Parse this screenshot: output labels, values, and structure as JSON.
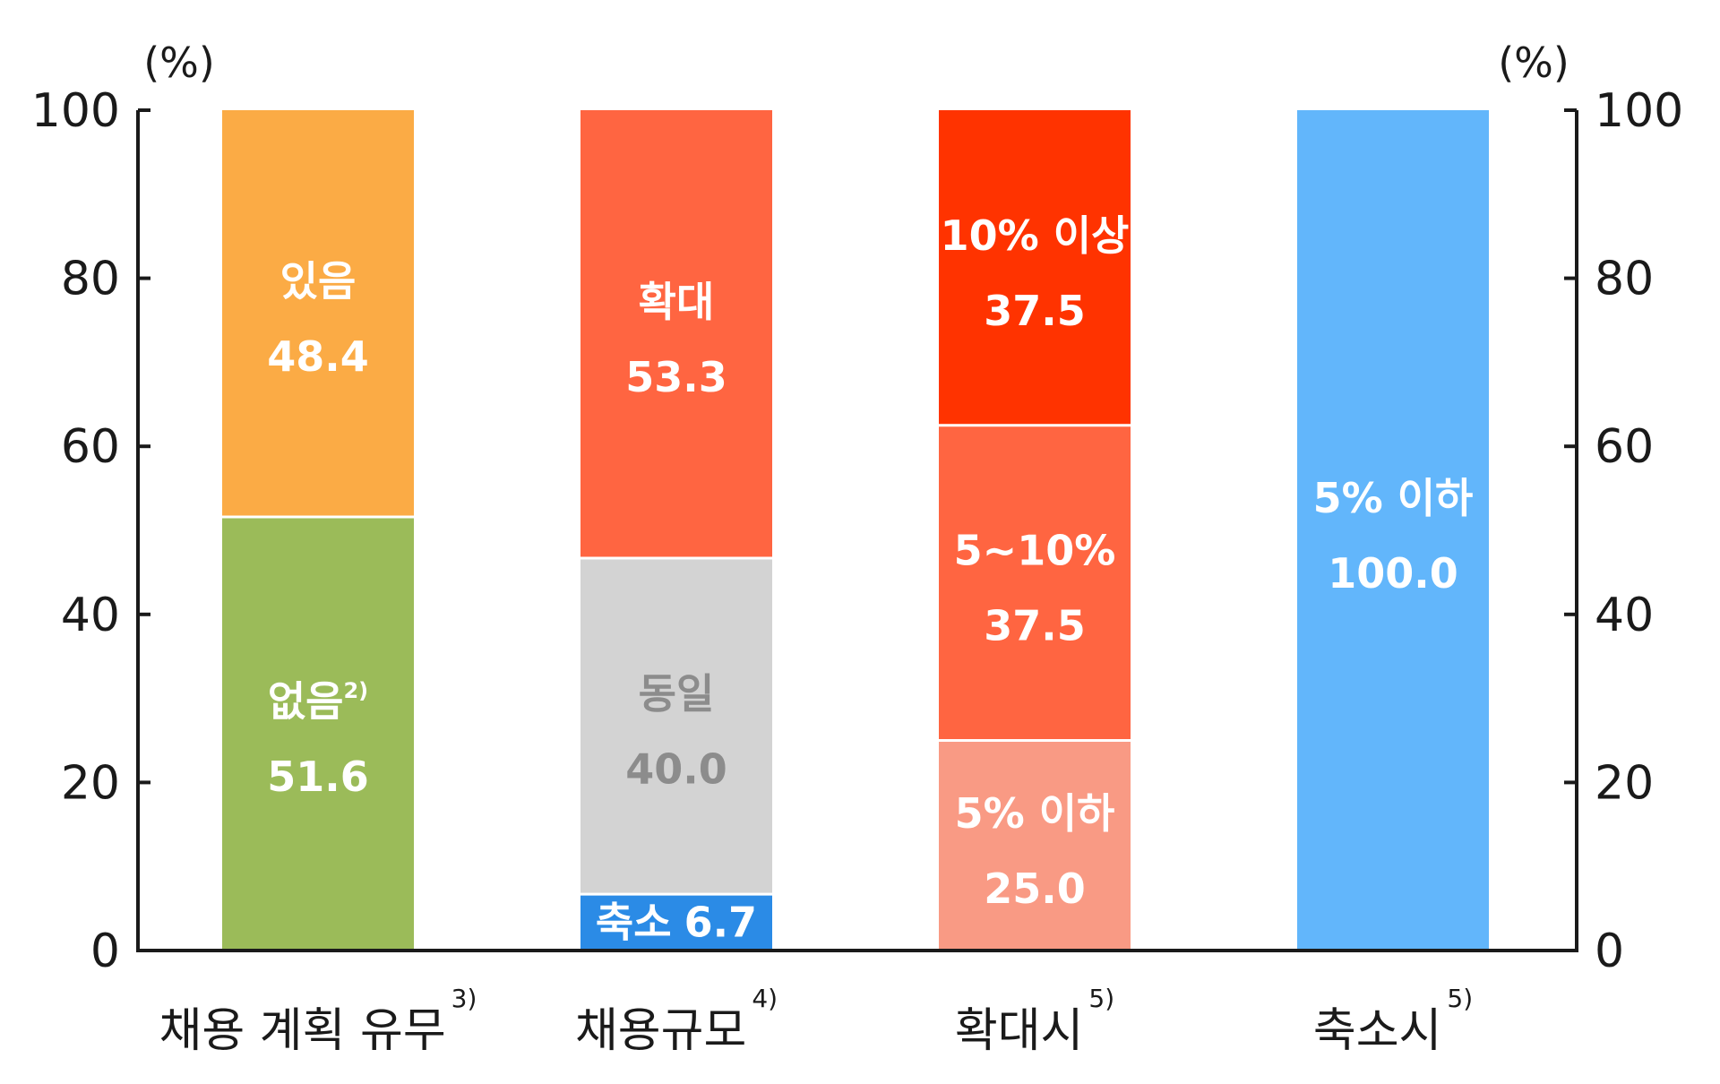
{
  "chart_data": {
    "type": "bar",
    "stacked": true,
    "percent": true,
    "unit_left": "(%)",
    "unit_right": "(%)",
    "ylim": [
      0,
      100
    ],
    "yticks": [
      0,
      20,
      40,
      60,
      80,
      100
    ],
    "grid": false,
    "bars": [
      {
        "category": "채용 계획 유무",
        "footnote": "3)",
        "segments": [
          {
            "label": "없음",
            "footnote": "2)",
            "value": 51.6,
            "value_text": "51.6",
            "color": "#9bbb59",
            "text_color": "#ffffff"
          },
          {
            "label": "있음",
            "footnote": "",
            "value": 48.4,
            "value_text": "48.4",
            "color": "#fbab45",
            "text_color": "#ffffff"
          }
        ]
      },
      {
        "category": "채용규모",
        "footnote": "4)",
        "segments": [
          {
            "label": "축소",
            "footnote": "",
            "value": 6.7,
            "value_text": "6.7",
            "color": "#2b8be6",
            "text_color": "#ffffff",
            "inline": true
          },
          {
            "label": "동일",
            "footnote": "",
            "value": 40.0,
            "value_text": "40.0",
            "color": "#d3d3d3",
            "text_color": "#8c8c8c"
          },
          {
            "label": "확대",
            "footnote": "",
            "value": 53.3,
            "value_text": "53.3",
            "color": "#ff6541",
            "text_color": "#ffffff"
          }
        ]
      },
      {
        "category": "확대시",
        "footnote": "5)",
        "segments": [
          {
            "label": "5% 이하",
            "footnote": "",
            "value": 25.0,
            "value_text": "25.0",
            "color": "#f99a84",
            "text_color": "#ffffff"
          },
          {
            "label": "5~10%",
            "footnote": "",
            "value": 37.5,
            "value_text": "37.5",
            "color": "#ff6541",
            "text_color": "#ffffff"
          },
          {
            "label": "10% 이상",
            "footnote": "",
            "value": 37.5,
            "value_text": "37.5",
            "color": "#ff3300",
            "text_color": "#ffffff"
          }
        ]
      },
      {
        "category": "축소시",
        "footnote": "5)",
        "segments": [
          {
            "label": "5% 이하",
            "footnote": "",
            "value": 100.0,
            "value_text": "100.0",
            "color": "#62b6fb",
            "text_color": "#ffffff"
          }
        ]
      }
    ]
  }
}
